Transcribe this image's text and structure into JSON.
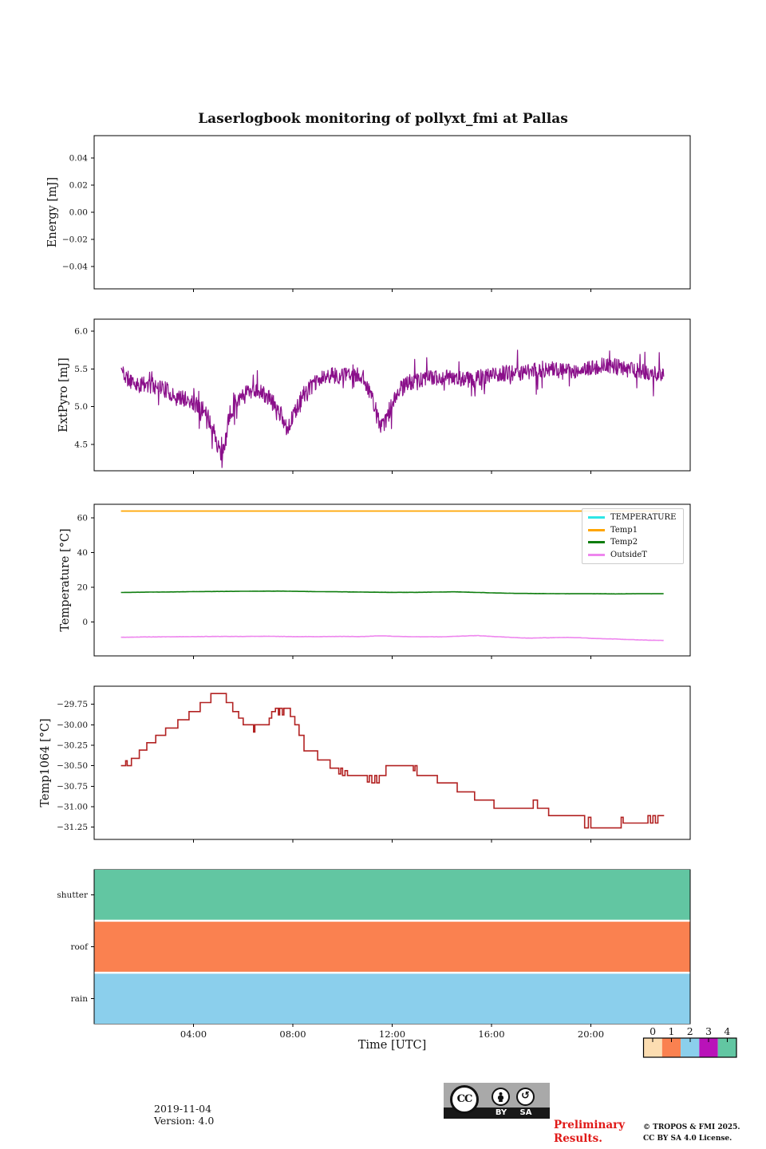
{
  "title": "Laserlogbook monitoring of pollyxt_fmi at Pallas",
  "footer": {
    "date": "2019-11-04",
    "version": "Version: 4.0",
    "preliminary_line1": "Preliminary",
    "preliminary_line2": "Results.",
    "copyright_line1": "© TROPOS & FMI 2025.",
    "copyright_line2": "CC BY SA 4.0 License.",
    "license_badge": {
      "cc": "CC",
      "by": "BY",
      "sa": "SA"
    }
  },
  "chart_data": {
    "type": "line",
    "xlabel": "Time [UTC]",
    "xlim": [
      0,
      24
    ],
    "xticks": {
      "values": [
        4,
        8,
        12,
        16,
        20
      ],
      "labels": [
        "04:00",
        "08:00",
        "12:00",
        "16:00",
        "20:00"
      ]
    },
    "plots": [
      {
        "name": "energy",
        "type": "line",
        "ylabel": "Energy [mJ]",
        "ylim": [
          -0.0565,
          0.0565
        ],
        "yticks": [
          0.04,
          0.02,
          0.0,
          -0.02,
          -0.04
        ],
        "ytick_labels": [
          "0.04",
          "0.02",
          "0.00",
          "−0.02",
          "−0.04"
        ],
        "series": []
      },
      {
        "name": "extpyro",
        "type": "line",
        "ylabel": "ExtPyro [mJ]",
        "ylim": [
          4.15,
          6.16
        ],
        "yticks": [
          4.5,
          5.0,
          5.5,
          6.0
        ],
        "ytick_labels": [
          "4.5",
          "5.0",
          "5.5",
          "6.0"
        ],
        "series": [
          {
            "name": "ExtPyro",
            "color": "#8a0f8a",
            "style": "noisy",
            "lw": 1.2,
            "x_range": [
              1.08,
              22.95
            ],
            "dt": 0.018,
            "noise_amp": 0.11,
            "spike_prob": 0.08,
            "seed": 11,
            "anchors": [
              [
                1.08,
                5.5
              ],
              [
                1.3,
                5.38
              ],
              [
                1.7,
                5.3
              ],
              [
                2.1,
                5.28
              ],
              [
                2.5,
                5.3
              ],
              [
                2.9,
                5.22
              ],
              [
                3.3,
                5.12
              ],
              [
                3.7,
                5.1
              ],
              [
                4.0,
                5.05
              ],
              [
                4.3,
                4.98
              ],
              [
                4.6,
                4.85
              ],
              [
                4.85,
                4.65
              ],
              [
                5.0,
                4.45
              ],
              [
                5.15,
                4.3
              ],
              [
                5.25,
                4.45
              ],
              [
                5.4,
                4.8
              ],
              [
                5.6,
                5.0
              ],
              [
                5.9,
                5.15
              ],
              [
                6.2,
                5.22
              ],
              [
                6.6,
                5.22
              ],
              [
                7.0,
                5.12
              ],
              [
                7.3,
                5.02
              ],
              [
                7.55,
                4.88
              ],
              [
                7.75,
                4.72
              ],
              [
                7.9,
                4.8
              ],
              [
                8.1,
                4.95
              ],
              [
                8.4,
                5.15
              ],
              [
                8.8,
                5.28
              ],
              [
                9.2,
                5.38
              ],
              [
                9.6,
                5.42
              ],
              [
                10.0,
                5.4
              ],
              [
                10.4,
                5.42
              ],
              [
                10.8,
                5.4
              ],
              [
                11.05,
                5.25
              ],
              [
                11.3,
                5.0
              ],
              [
                11.55,
                4.72
              ],
              [
                11.75,
                4.8
              ],
              [
                12.0,
                5.05
              ],
              [
                12.3,
                5.22
              ],
              [
                12.7,
                5.32
              ],
              [
                13.2,
                5.35
              ],
              [
                13.7,
                5.38
              ],
              [
                14.2,
                5.4
              ],
              [
                14.7,
                5.38
              ],
              [
                15.2,
                5.35
              ],
              [
                15.7,
                5.4
              ],
              [
                16.2,
                5.42
              ],
              [
                16.7,
                5.45
              ],
              [
                17.2,
                5.45
              ],
              [
                17.7,
                5.48
              ],
              [
                18.2,
                5.5
              ],
              [
                18.7,
                5.48
              ],
              [
                19.2,
                5.45
              ],
              [
                19.7,
                5.48
              ],
              [
                20.2,
                5.52
              ],
              [
                20.7,
                5.55
              ],
              [
                21.2,
                5.52
              ],
              [
                21.7,
                5.48
              ],
              [
                22.2,
                5.45
              ],
              [
                22.95,
                5.4
              ]
            ]
          }
        ]
      },
      {
        "name": "temperature",
        "type": "line",
        "ylabel": "Temperature [°C]",
        "ylim": [
          -19.5,
          67.8
        ],
        "yticks": [
          0,
          20,
          40,
          60
        ],
        "ytick_labels": [
          "0",
          "20",
          "40",
          "60"
        ],
        "legend": {
          "position": "upper right",
          "items": [
            {
              "label": "TEMPERATURE",
              "color": "#2ee6e6"
            },
            {
              "label": "Temp1",
              "color": "#ffa500"
            },
            {
              "label": "Temp2",
              "color": "#0e7d0e"
            },
            {
              "label": "OutsideT",
              "color": "#ee86ee"
            }
          ]
        },
        "series": [
          {
            "name": "TEMPERATURE",
            "color": "#2ee6e6",
            "style": "line",
            "lw": 1.6,
            "x_range": [
              1.08,
              22.95
            ],
            "dt": 0.1,
            "noise_amp": 0,
            "seed": 1,
            "anchors": []
          },
          {
            "name": "Temp1",
            "color": "#ffa500",
            "style": "line",
            "lw": 1.8,
            "x_range": [
              1.08,
              22.95
            ],
            "dt": 0.25,
            "noise_amp": 0,
            "seed": 2,
            "anchors": [
              [
                1.08,
                63.9
              ],
              [
                22.95,
                63.9
              ]
            ]
          },
          {
            "name": "Temp2",
            "color": "#0e7d0e",
            "style": "line",
            "lw": 1.6,
            "x_range": [
              1.08,
              22.95
            ],
            "dt": 0.05,
            "noise_amp": 0.035,
            "seed": 9,
            "anchors": [
              [
                1.08,
                17.0
              ],
              [
                2,
                17.2
              ],
              [
                3,
                17.3
              ],
              [
                4,
                17.5
              ],
              [
                5,
                17.6
              ],
              [
                6,
                17.7
              ],
              [
                7,
                17.8
              ],
              [
                7.5,
                17.8
              ],
              [
                8,
                17.7
              ],
              [
                9,
                17.5
              ],
              [
                10,
                17.4
              ],
              [
                11,
                17.2
              ],
              [
                12,
                17.1
              ],
              [
                13,
                17.1
              ],
              [
                14,
                17.3
              ],
              [
                14.5,
                17.4
              ],
              [
                15,
                17.2
              ],
              [
                16,
                16.8
              ],
              [
                17,
                16.5
              ],
              [
                18,
                16.4
              ],
              [
                19,
                16.3
              ],
              [
                20,
                16.3
              ],
              [
                21,
                16.2
              ],
              [
                22,
                16.3
              ],
              [
                22.95,
                16.3
              ]
            ]
          },
          {
            "name": "OutsideT",
            "color": "#ee86ee",
            "style": "line",
            "lw": 1.6,
            "x_range": [
              1.08,
              22.95
            ],
            "dt": 0.05,
            "noise_amp": 0.07,
            "seed": 5,
            "anchors": [
              [
                1.08,
                -8.8
              ],
              [
                2,
                -8.6
              ],
              [
                3,
                -8.5
              ],
              [
                4,
                -8.4
              ],
              [
                5,
                -8.3
              ],
              [
                6,
                -8.3
              ],
              [
                7,
                -8.2
              ],
              [
                8,
                -8.4
              ],
              [
                9,
                -8.4
              ],
              [
                10,
                -8.3
              ],
              [
                10.8,
                -8.4
              ],
              [
                11.5,
                -7.9
              ],
              [
                12,
                -8.2
              ],
              [
                12.5,
                -8.4
              ],
              [
                13,
                -8.5
              ],
              [
                14,
                -8.5
              ],
              [
                15,
                -8.0
              ],
              [
                15.4,
                -7.8
              ],
              [
                16,
                -8.3
              ],
              [
                17,
                -9.0
              ],
              [
                17.5,
                -9.3
              ],
              [
                18,
                -9.1
              ],
              [
                19,
                -8.9
              ],
              [
                19.5,
                -9.0
              ],
              [
                20,
                -9.4
              ],
              [
                20.5,
                -9.6
              ],
              [
                21,
                -9.8
              ],
              [
                21.5,
                -10.1
              ],
              [
                22,
                -10.3
              ],
              [
                22.95,
                -10.6
              ]
            ]
          }
        ]
      },
      {
        "name": "temp1064",
        "type": "line",
        "ylabel": "Temp1064 [°C]",
        "ylim": [
          -31.4,
          -29.53
        ],
        "yticks": [
          -29.75,
          -30.0,
          -30.25,
          -30.5,
          -30.75,
          -31.0,
          -31.25
        ],
        "ytick_labels": [
          "−29.75",
          "−30.00",
          "−30.25",
          "−30.50",
          "−30.75",
          "−31.00",
          "−31.25"
        ],
        "series": [
          {
            "name": "Temp1064",
            "color": "#b22222",
            "style": "steps",
            "lw": 1.6,
            "x_end": 22.95,
            "points": [
              [
                1.08,
                -30.5
              ],
              [
                1.27,
                -30.44
              ],
              [
                1.33,
                -30.5
              ],
              [
                1.5,
                -30.41
              ],
              [
                1.82,
                -30.31
              ],
              [
                2.12,
                -30.22
              ],
              [
                2.48,
                -30.13
              ],
              [
                2.88,
                -30.04
              ],
              [
                3.37,
                -29.94
              ],
              [
                3.82,
                -29.84
              ],
              [
                4.27,
                -29.73
              ],
              [
                4.7,
                -29.62
              ],
              [
                5.32,
                -29.73
              ],
              [
                5.58,
                -29.84
              ],
              [
                5.82,
                -29.92
              ],
              [
                6.0,
                -30.0
              ],
              [
                6.42,
                -30.09
              ],
              [
                6.47,
                -30.0
              ],
              [
                7.05,
                -29.92
              ],
              [
                7.15,
                -29.84
              ],
              [
                7.3,
                -29.8
              ],
              [
                7.42,
                -29.88
              ],
              [
                7.47,
                -29.8
              ],
              [
                7.58,
                -29.88
              ],
              [
                7.64,
                -29.8
              ],
              [
                7.9,
                -29.9
              ],
              [
                8.08,
                -30.0
              ],
              [
                8.25,
                -30.13
              ],
              [
                8.45,
                -30.32
              ],
              [
                9.0,
                -30.43
              ],
              [
                9.5,
                -30.53
              ],
              [
                9.85,
                -30.6
              ],
              [
                9.93,
                -30.53
              ],
              [
                10.0,
                -30.62
              ],
              [
                10.1,
                -30.56
              ],
              [
                10.2,
                -30.62
              ],
              [
                11.0,
                -30.7
              ],
              [
                11.08,
                -30.62
              ],
              [
                11.18,
                -30.71
              ],
              [
                11.3,
                -30.62
              ],
              [
                11.38,
                -30.71
              ],
              [
                11.48,
                -30.62
              ],
              [
                11.75,
                -30.5
              ],
              [
                12.85,
                -30.56
              ],
              [
                12.92,
                -30.5
              ],
              [
                13.0,
                -30.62
              ],
              [
                13.82,
                -30.71
              ],
              [
                14.62,
                -30.82
              ],
              [
                15.32,
                -30.92
              ],
              [
                16.1,
                -31.02
              ],
              [
                17.6,
                -31.02
              ],
              [
                17.68,
                -30.92
              ],
              [
                17.85,
                -31.02
              ],
              [
                18.3,
                -31.11
              ],
              [
                19.75,
                -31.26
              ],
              [
                19.9,
                -31.13
              ],
              [
                20.0,
                -31.26
              ],
              [
                21.22,
                -31.13
              ],
              [
                21.3,
                -31.2
              ],
              [
                22.3,
                -31.11
              ],
              [
                22.4,
                -31.2
              ],
              [
                22.5,
                -31.11
              ],
              [
                22.6,
                -31.2
              ],
              [
                22.7,
                -31.11
              ],
              [
                22.95,
                -31.11
              ]
            ]
          }
        ]
      },
      {
        "name": "status",
        "type": "bars",
        "ylabel": "",
        "bars": [
          {
            "label": "shutter",
            "value": 4,
            "color": "#62c6a2"
          },
          {
            "label": "roof",
            "value": 1,
            "color": "#fa8150"
          },
          {
            "label": "rain",
            "value": 2,
            "color": "#8bcfec"
          }
        ],
        "x_range": [
          0,
          24
        ]
      }
    ],
    "status_colorbar": {
      "values": [
        "0",
        "1",
        "2",
        "3",
        "4"
      ],
      "colors": [
        "#fcddb1",
        "#fa8150",
        "#8bcfec",
        "#b912b9",
        "#62c6a2"
      ]
    }
  }
}
